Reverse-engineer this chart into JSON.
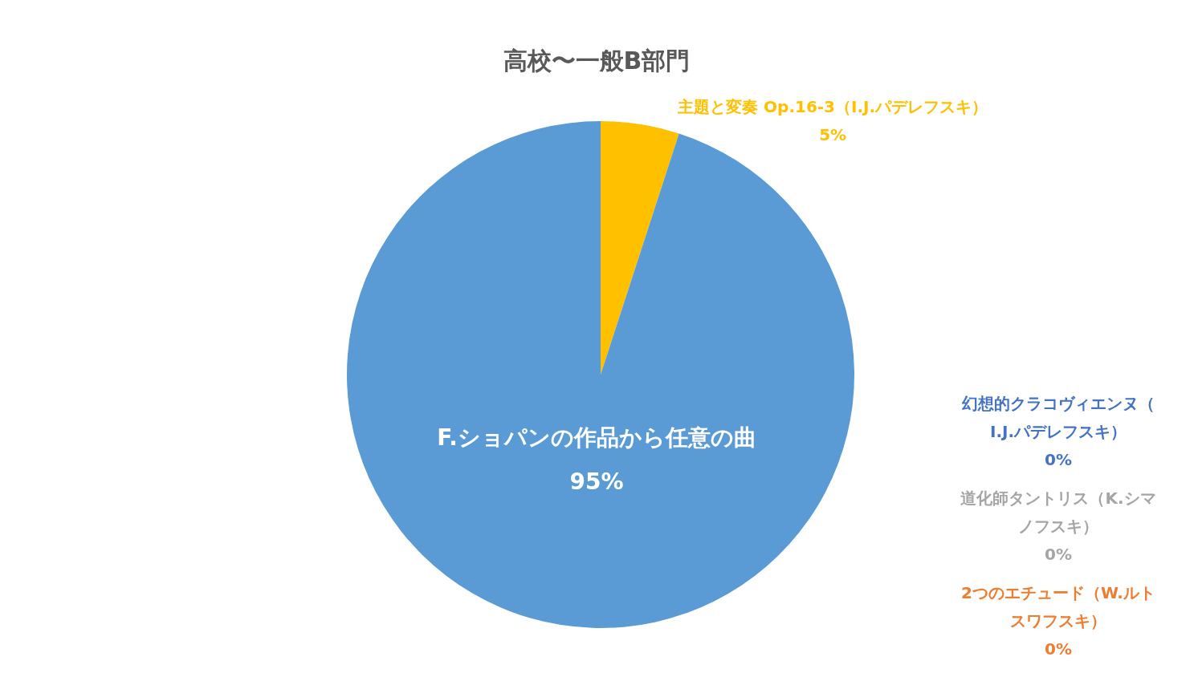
{
  "chart_data": {
    "type": "pie",
    "title": "高校〜一般B部門",
    "categories": [
      "主題と変奏 Op.16-3（I.J.パデレフスキ）",
      "F.ショパンの作品から任意の曲",
      "幻想的クラコヴィエンヌ（I.J.パデレフスキ）",
      "道化師タントリス（K.シマノフスキ）",
      "2つのエチュード（W.ルトスワフスキ）"
    ],
    "values": [
      5,
      95,
      0,
      0,
      0
    ],
    "colors": [
      "#ffc000",
      "#5b9bd5",
      "#4472c4",
      "#a5a5a5",
      "#ed7d31"
    ],
    "value_labels": [
      "5%",
      "95%",
      "0%",
      "0%",
      "0%"
    ]
  }
}
